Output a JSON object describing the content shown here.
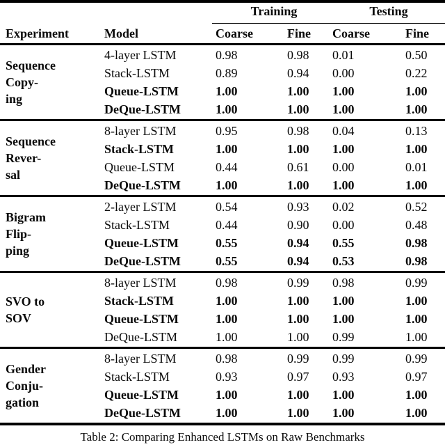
{
  "table": {
    "span_headers": {
      "training": "Training",
      "testing": "Testing"
    },
    "col_headers": {
      "experiment": "Experiment",
      "model": "Model",
      "train_coarse": "Coarse",
      "train_fine": "Fine",
      "test_coarse": "Coarse",
      "test_fine": "Fine"
    },
    "groups": [
      {
        "experiment_lines": [
          "Sequence",
          "Copy-",
          "ing"
        ],
        "rows": [
          {
            "model": "4-layer LSTM",
            "values": [
              "0.98",
              "0.98",
              "0.01",
              "0.50"
            ]
          },
          {
            "model": "Stack-LSTM",
            "values": [
              "0.89",
              "0.94",
              "0.00",
              "0.22"
            ]
          },
          {
            "model": "Queue-LSTM",
            "values": [
              "1.00",
              "1.00",
              "1.00",
              "1.00"
            ]
          },
          {
            "model": "DeQue-LSTM",
            "values": [
              "1.00",
              "1.00",
              "1.00",
              "1.00"
            ]
          }
        ]
      },
      {
        "experiment_lines": [
          "Sequence",
          "Rever-",
          "sal"
        ],
        "rows": [
          {
            "model": "8-layer LSTM",
            "values": [
              "0.95",
              "0.98",
              "0.04",
              "0.13"
            ]
          },
          {
            "model": "Stack-LSTM",
            "values": [
              "1.00",
              "1.00",
              "1.00",
              "1.00"
            ]
          },
          {
            "model": "Queue-LSTM",
            "values": [
              "0.44",
              "0.61",
              "0.00",
              "0.01"
            ]
          },
          {
            "model": "DeQue-LSTM",
            "values": [
              "1.00",
              "1.00",
              "1.00",
              "1.00"
            ]
          }
        ]
      },
      {
        "experiment_lines": [
          "Bigram",
          "Flip-",
          "ping"
        ],
        "rows": [
          {
            "model": "2-layer LSTM",
            "values": [
              "0.54",
              "0.93",
              "0.02",
              "0.52"
            ]
          },
          {
            "model": "Stack-LSTM",
            "values": [
              "0.44",
              "0.90",
              "0.00",
              "0.48"
            ]
          },
          {
            "model": "Queue-LSTM",
            "values": [
              "0.55",
              "0.94",
              "0.55",
              "0.98"
            ]
          },
          {
            "model": "DeQue-LSTM",
            "values": [
              "0.55",
              "0.94",
              "0.53",
              "0.98"
            ]
          }
        ]
      },
      {
        "experiment_lines": [
          "SVO to",
          "SOV"
        ],
        "rows": [
          {
            "model": "8-layer LSTM",
            "values": [
              "0.98",
              "0.99",
              "0.98",
              "0.99"
            ]
          },
          {
            "model": "Stack-LSTM",
            "values": [
              "1.00",
              "1.00",
              "1.00",
              "1.00"
            ]
          },
          {
            "model": "Queue-LSTM",
            "values": [
              "1.00",
              "1.00",
              "1.00",
              "1.00"
            ]
          },
          {
            "model": "DeQue-LSTM",
            "values": [
              "1.00",
              "1.00",
              "0.99",
              "1.00"
            ]
          }
        ]
      },
      {
        "experiment_lines": [
          "Gender",
          "Conju-",
          "gation"
        ],
        "rows": [
          {
            "model": "8-layer LSTM",
            "values": [
              "0.98",
              "0.99",
              "0.99",
              "0.99"
            ]
          },
          {
            "model": "Stack-LSTM",
            "values": [
              "0.93",
              "0.97",
              "0.93",
              "0.97"
            ]
          },
          {
            "model": "Queue-LSTM",
            "values": [
              "1.00",
              "1.00",
              "1.00",
              "1.00"
            ]
          },
          {
            "model": "DeQue-LSTM",
            "values": [
              "1.00",
              "1.00",
              "1.00",
              "1.00"
            ]
          }
        ]
      }
    ]
  },
  "caption": "Table 2: Comparing Enhanced LSTMs on Raw Benchmarks"
}
